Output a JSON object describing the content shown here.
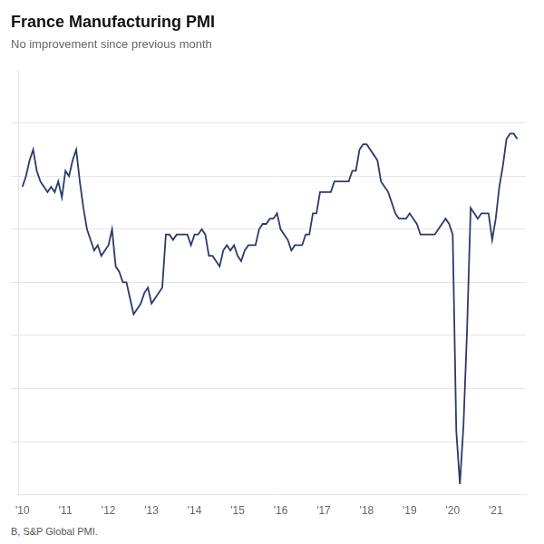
{
  "chart_data": {
    "type": "line",
    "title": "France Manufacturing PMI",
    "subtitle": "No improvement since previous month",
    "source": "B, S&P Global PMI.",
    "color": "#2b3a6b",
    "xlim": [
      2009.9,
      2021.7
    ],
    "xticks": [
      {
        "value": 2010,
        "label": "'10"
      },
      {
        "value": 2011,
        "label": "'11"
      },
      {
        "value": 2012,
        "label": "'12"
      },
      {
        "value": 2013,
        "label": "'13"
      },
      {
        "value": 2014,
        "label": "'14"
      },
      {
        "value": 2015,
        "label": "'15"
      },
      {
        "value": 2016,
        "label": "'16"
      },
      {
        "value": 2017,
        "label": "'17"
      },
      {
        "value": 2018,
        "label": "'18"
      },
      {
        "value": 2019,
        "label": "'19"
      },
      {
        "value": 2020,
        "label": "'20"
      },
      {
        "value": 2021,
        "label": "'21"
      }
    ],
    "ylim": [
      25,
      65
    ],
    "yticks": [
      30,
      35,
      40,
      45,
      50,
      55,
      60
    ],
    "grid": "y",
    "tick_labels": "x",
    "x": [
      2010.0,
      2010.083,
      2010.167,
      2010.25,
      2010.333,
      2010.417,
      2010.5,
      2010.583,
      2010.667,
      2010.75,
      2010.833,
      2010.917,
      2011.0,
      2011.083,
      2011.167,
      2011.25,
      2011.333,
      2011.417,
      2011.5,
      2011.583,
      2011.667,
      2011.75,
      2011.833,
      2011.917,
      2012.0,
      2012.083,
      2012.167,
      2012.25,
      2012.333,
      2012.417,
      2012.5,
      2012.583,
      2012.667,
      2012.75,
      2012.833,
      2012.917,
      2013.0,
      2013.083,
      2013.167,
      2013.25,
      2013.333,
      2013.417,
      2013.5,
      2013.583,
      2013.667,
      2013.75,
      2013.833,
      2013.917,
      2014.0,
      2014.083,
      2014.167,
      2014.25,
      2014.333,
      2014.417,
      2014.5,
      2014.583,
      2014.667,
      2014.75,
      2014.833,
      2014.917,
      2015.0,
      2015.083,
      2015.167,
      2015.25,
      2015.333,
      2015.417,
      2015.5,
      2015.583,
      2015.667,
      2015.75,
      2015.833,
      2015.917,
      2016.0,
      2016.083,
      2016.167,
      2016.25,
      2016.333,
      2016.417,
      2016.5,
      2016.583,
      2016.667,
      2016.75,
      2016.833,
      2016.917,
      2017.0,
      2017.083,
      2017.167,
      2017.25,
      2017.333,
      2017.417,
      2017.5,
      2017.583,
      2017.667,
      2017.75,
      2017.833,
      2017.917,
      2018.0,
      2018.083,
      2018.167,
      2018.25,
      2018.333,
      2018.417,
      2018.5,
      2018.583,
      2018.667,
      2018.75,
      2018.833,
      2018.917,
      2019.0,
      2019.083,
      2019.167,
      2019.25,
      2019.333,
      2019.417,
      2019.5,
      2019.583,
      2019.667,
      2019.75,
      2019.833,
      2019.917,
      2020.0,
      2020.083,
      2020.167,
      2020.25,
      2020.333,
      2020.417,
      2020.5,
      2020.583,
      2020.667,
      2020.75,
      2020.833,
      2020.917,
      2021.0,
      2021.083,
      2021.167,
      2021.25,
      2021.333,
      2021.417,
      2021.5
    ],
    "values": [
      54.0,
      55.0,
      56.5,
      57.5,
      55.5,
      54.5,
      54.0,
      53.5,
      54.0,
      53.5,
      54.5,
      53.0,
      55.5,
      55.0,
      56.5,
      57.5,
      54.5,
      52.0,
      50.0,
      49.0,
      48.0,
      48.5,
      47.5,
      48.0,
      48.5,
      50.0,
      46.5,
      46.0,
      45.0,
      45.0,
      43.5,
      42.0,
      42.5,
      43.0,
      44.0,
      44.5,
      43.0,
      43.5,
      44.0,
      44.5,
      49.5,
      49.5,
      49.0,
      49.5,
      49.5,
      49.5,
      49.5,
      48.5,
      49.5,
      49.5,
      50.0,
      49.5,
      47.5,
      47.5,
      47.0,
      46.5,
      48.0,
      48.5,
      48.0,
      48.5,
      47.5,
      47.0,
      48.0,
      48.5,
      48.5,
      48.5,
      50.0,
      50.5,
      50.5,
      51.0,
      51.0,
      51.5,
      50.0,
      49.5,
      49.0,
      48.0,
      48.5,
      48.5,
      48.5,
      49.5,
      49.5,
      51.5,
      51.5,
      53.5,
      53.5,
      53.5,
      53.5,
      54.5,
      54.5,
      54.5,
      54.5,
      54.5,
      55.5,
      55.5,
      57.5,
      58.0,
      58.0,
      57.5,
      57.0,
      56.5,
      54.5,
      54.0,
      53.5,
      52.5,
      51.5,
      51.0,
      51.0,
      51.0,
      51.5,
      51.0,
      50.5,
      49.5,
      49.5,
      49.5,
      49.5,
      49.5,
      50.0,
      50.5,
      51.0,
      50.5,
      49.5,
      31.0,
      26.0,
      31.5,
      40.5,
      52.0,
      51.5,
      51.0,
      51.5,
      51.5,
      51.5,
      49.0,
      51.0,
      54.0,
      56.0,
      58.5,
      59.0,
      59.0,
      58.5
    ]
  }
}
